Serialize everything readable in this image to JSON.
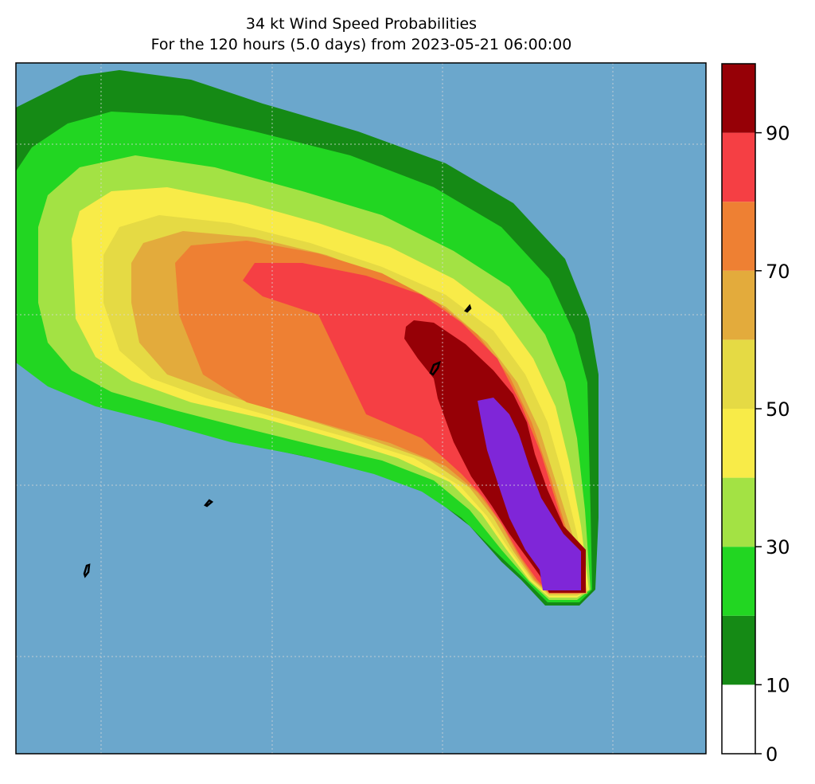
{
  "title": "34 kt Wind Speed Probabilities",
  "subtitle": "For the 120 hours (5.0 days) from 2023-05-21 06:00:00",
  "colorbar": {
    "levels": [
      0,
      10,
      20,
      30,
      40,
      50,
      60,
      70,
      80,
      90,
      100
    ],
    "colors": [
      "#ffffff",
      "#158a15",
      "#22d622",
      "#a3e244",
      "#f8eb48",
      "#e5da44",
      "#e3ab3c",
      "#ee8033",
      "#f53f44",
      "#960006",
      "#7f26d8"
    ],
    "tick_labels": [
      "0",
      "10",
      "30",
      "50",
      "70",
      "90"
    ]
  },
  "map": {
    "ocean_color": "#6ba7cc",
    "gridlines": "dotted"
  }
}
